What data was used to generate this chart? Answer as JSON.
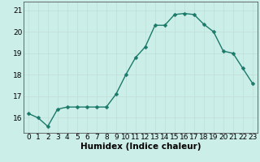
{
  "x": [
    0,
    1,
    2,
    3,
    4,
    5,
    6,
    7,
    8,
    9,
    10,
    11,
    12,
    13,
    14,
    15,
    16,
    17,
    18,
    19,
    20,
    21,
    22,
    23
  ],
  "y": [
    16.2,
    16.0,
    15.6,
    16.4,
    16.5,
    16.5,
    16.5,
    16.5,
    16.5,
    17.1,
    18.0,
    18.8,
    19.3,
    20.3,
    20.3,
    20.8,
    20.85,
    20.8,
    20.35,
    20.0,
    19.1,
    19.0,
    18.3,
    17.6
  ],
  "bg_color": "#cceee8",
  "line_color": "#1a7a6a",
  "marker_color": "#1a7a6a",
  "grid_color": "#c0ddd8",
  "xlabel": "Humidex (Indice chaleur)",
  "ylim": [
    15.3,
    21.4
  ],
  "yticks": [
    16,
    17,
    18,
    19,
    20,
    21
  ],
  "xticks": [
    0,
    1,
    2,
    3,
    4,
    5,
    6,
    7,
    8,
    9,
    10,
    11,
    12,
    13,
    14,
    15,
    16,
    17,
    18,
    19,
    20,
    21,
    22,
    23
  ],
  "xlabel_fontsize": 7.5,
  "tick_fontsize": 6.5,
  "line_width": 1.0,
  "marker_size": 2.5
}
